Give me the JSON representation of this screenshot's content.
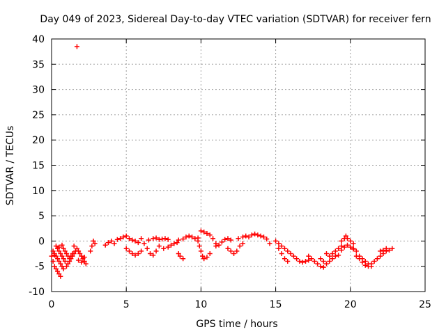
{
  "chart_data": {
    "type": "scatter",
    "title": "Day 049 of 2023, Sidereal Day-to-day VTEC variation (SDTVAR) for receiver fern",
    "xlabel": "GPS time / hours",
    "ylabel": "SDTVAR / TECUs",
    "xlim": [
      0,
      25
    ],
    "ylim": [
      -10,
      40
    ],
    "xticks": [
      "0",
      "5",
      "10",
      "15",
      "20",
      "25"
    ],
    "yticks": [
      "-10",
      "-5",
      "0",
      "5",
      "10",
      "15",
      "20",
      "25",
      "30",
      "35",
      "40"
    ],
    "grid": true,
    "marker": "plus",
    "color": "#ff0000",
    "series": [
      {
        "name": "fern",
        "points": [
          [
            1.7,
            38.5
          ],
          [
            0.0,
            -3.0
          ],
          [
            0.1,
            -4.0
          ],
          [
            0.2,
            -5.0
          ],
          [
            0.3,
            -5.5
          ],
          [
            0.4,
            -6.0
          ],
          [
            0.5,
            -6.5
          ],
          [
            0.6,
            -7.0
          ],
          [
            0.1,
            -2.0
          ],
          [
            0.2,
            -2.5
          ],
          [
            0.3,
            -3.0
          ],
          [
            0.4,
            -3.5
          ],
          [
            0.5,
            -4.0
          ],
          [
            0.6,
            -4.5
          ],
          [
            0.7,
            -5.0
          ],
          [
            0.8,
            -5.5
          ],
          [
            0.3,
            -1.0
          ],
          [
            0.4,
            -1.5
          ],
          [
            0.5,
            -2.0
          ],
          [
            0.6,
            -2.5
          ],
          [
            0.7,
            -3.0
          ],
          [
            0.8,
            -3.5
          ],
          [
            0.9,
            -4.0
          ],
          [
            0.8,
            -1.5
          ],
          [
            0.9,
            -2.0
          ],
          [
            1.0,
            -2.5
          ],
          [
            1.1,
            -3.0
          ],
          [
            1.2,
            -3.5
          ],
          [
            1.3,
            -3.0
          ],
          [
            1.4,
            -2.5
          ],
          [
            1.0,
            -5.0
          ],
          [
            1.1,
            -4.5
          ],
          [
            1.2,
            -4.0
          ],
          [
            1.3,
            -3.5
          ],
          [
            1.4,
            -3.0
          ],
          [
            1.5,
            -2.5
          ],
          [
            1.6,
            -2.0
          ],
          [
            1.7,
            -1.5
          ],
          [
            1.8,
            -2.0
          ],
          [
            1.9,
            -2.5
          ],
          [
            2.0,
            -3.0
          ],
          [
            2.1,
            -3.5
          ],
          [
            2.2,
            -4.0
          ],
          [
            2.3,
            -4.5
          ],
          [
            0.2,
            -2.8
          ],
          [
            0.5,
            -1.2
          ],
          [
            0.7,
            -0.8
          ],
          [
            1.5,
            -1.0
          ],
          [
            1.8,
            -3.8
          ],
          [
            2.0,
            -4.2
          ],
          [
            2.2,
            -3.2
          ],
          [
            2.6,
            -2.0
          ],
          [
            2.7,
            -1.0
          ],
          [
            2.8,
            0.0
          ],
          [
            2.9,
            -0.5
          ],
          [
            3.6,
            -0.8
          ],
          [
            3.8,
            -0.3
          ],
          [
            4.0,
            0.0
          ],
          [
            4.2,
            -0.5
          ],
          [
            4.4,
            0.3
          ],
          [
            4.6,
            0.5
          ],
          [
            4.8,
            0.8
          ],
          [
            5.0,
            1.0
          ],
          [
            5.2,
            0.5
          ],
          [
            5.4,
            0.2
          ],
          [
            5.6,
            0.0
          ],
          [
            5.8,
            -0.3
          ],
          [
            5.0,
            -1.5
          ],
          [
            5.2,
            -2.0
          ],
          [
            5.4,
            -2.5
          ],
          [
            5.6,
            -2.8
          ],
          [
            5.8,
            -2.5
          ],
          [
            6.0,
            -2.0
          ],
          [
            6.0,
            0.5
          ],
          [
            6.2,
            -0.5
          ],
          [
            6.4,
            -1.5
          ],
          [
            6.6,
            -2.5
          ],
          [
            6.8,
            -2.8
          ],
          [
            7.0,
            -2.0
          ],
          [
            6.5,
            0.2
          ],
          [
            6.8,
            0.5
          ],
          [
            7.0,
            0.6
          ],
          [
            7.2,
            0.3
          ],
          [
            7.4,
            0.4
          ],
          [
            7.6,
            0.5
          ],
          [
            7.8,
            0.3
          ],
          [
            7.2,
            -1.0
          ],
          [
            7.5,
            -1.5
          ],
          [
            7.8,
            -1.2
          ],
          [
            8.0,
            -0.8
          ],
          [
            8.2,
            -0.5
          ],
          [
            8.4,
            -0.3
          ],
          [
            8.5,
            0.2
          ],
          [
            8.8,
            0.4
          ],
          [
            9.0,
            0.8
          ],
          [
            9.2,
            1.0
          ],
          [
            9.4,
            0.8
          ],
          [
            9.6,
            0.5
          ],
          [
            9.8,
            0.6
          ],
          [
            8.5,
            -2.5
          ],
          [
            8.6,
            -3.0
          ],
          [
            8.8,
            -3.5
          ],
          [
            9.8,
            0.0
          ],
          [
            9.9,
            -1.0
          ],
          [
            10.0,
            -2.0
          ],
          [
            10.1,
            -3.0
          ],
          [
            10.2,
            -3.5
          ],
          [
            10.4,
            -3.2
          ],
          [
            10.6,
            -2.5
          ],
          [
            10.0,
            2.0
          ],
          [
            10.2,
            1.8
          ],
          [
            10.4,
            1.5
          ],
          [
            10.6,
            1.2
          ],
          [
            10.8,
            0.5
          ],
          [
            11.0,
            -0.5
          ],
          [
            11.0,
            -1.0
          ],
          [
            11.2,
            -0.8
          ],
          [
            11.4,
            -0.2
          ],
          [
            11.6,
            0.3
          ],
          [
            11.8,
            0.5
          ],
          [
            12.0,
            0.2
          ],
          [
            11.8,
            -1.5
          ],
          [
            12.0,
            -2.0
          ],
          [
            12.2,
            -2.5
          ],
          [
            12.4,
            -2.0
          ],
          [
            12.6,
            -1.0
          ],
          [
            12.8,
            -0.5
          ],
          [
            12.5,
            0.5
          ],
          [
            12.8,
            0.8
          ],
          [
            13.0,
            1.0
          ],
          [
            13.2,
            0.8
          ],
          [
            13.4,
            1.2
          ],
          [
            13.6,
            1.4
          ],
          [
            13.8,
            1.2
          ],
          [
            14.0,
            1.0
          ],
          [
            14.2,
            0.8
          ],
          [
            14.4,
            0.4
          ],
          [
            14.6,
            -0.5
          ],
          [
            15.0,
            0.0
          ],
          [
            15.2,
            -0.5
          ],
          [
            15.4,
            -1.0
          ],
          [
            15.6,
            -1.5
          ],
          [
            15.8,
            -2.0
          ],
          [
            16.0,
            -2.5
          ],
          [
            15.2,
            -1.5
          ],
          [
            15.4,
            -2.5
          ],
          [
            15.6,
            -3.5
          ],
          [
            15.8,
            -4.0
          ],
          [
            16.2,
            -3.0
          ],
          [
            16.4,
            -3.5
          ],
          [
            16.6,
            -4.0
          ],
          [
            16.8,
            -4.2
          ],
          [
            17.0,
            -4.0
          ],
          [
            17.2,
            -3.8
          ],
          [
            17.2,
            -3.0
          ],
          [
            17.4,
            -3.5
          ],
          [
            17.6,
            -4.0
          ],
          [
            17.8,
            -4.5
          ],
          [
            18.0,
            -5.0
          ],
          [
            18.2,
            -5.2
          ],
          [
            18.0,
            -3.5
          ],
          [
            18.2,
            -4.0
          ],
          [
            18.4,
            -4.5
          ],
          [
            18.6,
            -4.0
          ],
          [
            18.8,
            -3.5
          ],
          [
            19.0,
            -3.0
          ],
          [
            18.4,
            -2.5
          ],
          [
            18.6,
            -3.0
          ],
          [
            18.8,
            -2.5
          ],
          [
            19.0,
            -2.0
          ],
          [
            19.2,
            -1.5
          ],
          [
            19.4,
            -1.0
          ],
          [
            19.4,
            0.0
          ],
          [
            19.6,
            0.5
          ],
          [
            19.7,
            1.0
          ],
          [
            19.8,
            0.5
          ],
          [
            20.0,
            0.0
          ],
          [
            20.2,
            -0.5
          ],
          [
            19.2,
            -2.8
          ],
          [
            19.4,
            -1.8
          ],
          [
            19.6,
            -1.2
          ],
          [
            19.8,
            -0.8
          ],
          [
            20.0,
            -1.2
          ],
          [
            20.2,
            -1.6
          ],
          [
            20.2,
            -1.5
          ],
          [
            20.4,
            -2.0
          ],
          [
            20.6,
            -3.0
          ],
          [
            20.8,
            -3.5
          ],
          [
            21.0,
            -4.0
          ],
          [
            21.2,
            -4.5
          ],
          [
            20.4,
            -3.0
          ],
          [
            20.6,
            -3.5
          ],
          [
            20.8,
            -4.2
          ],
          [
            21.0,
            -4.8
          ],
          [
            21.2,
            -5.0
          ],
          [
            21.4,
            -5.0
          ],
          [
            21.4,
            -4.5
          ],
          [
            21.6,
            -4.0
          ],
          [
            21.8,
            -3.5
          ],
          [
            22.0,
            -3.0
          ],
          [
            22.2,
            -2.5
          ],
          [
            22.4,
            -2.0
          ],
          [
            22.0,
            -2.0
          ],
          [
            22.2,
            -1.8
          ],
          [
            22.4,
            -1.5
          ],
          [
            22.6,
            -1.8
          ],
          [
            22.8,
            -1.5
          ]
        ]
      }
    ]
  }
}
